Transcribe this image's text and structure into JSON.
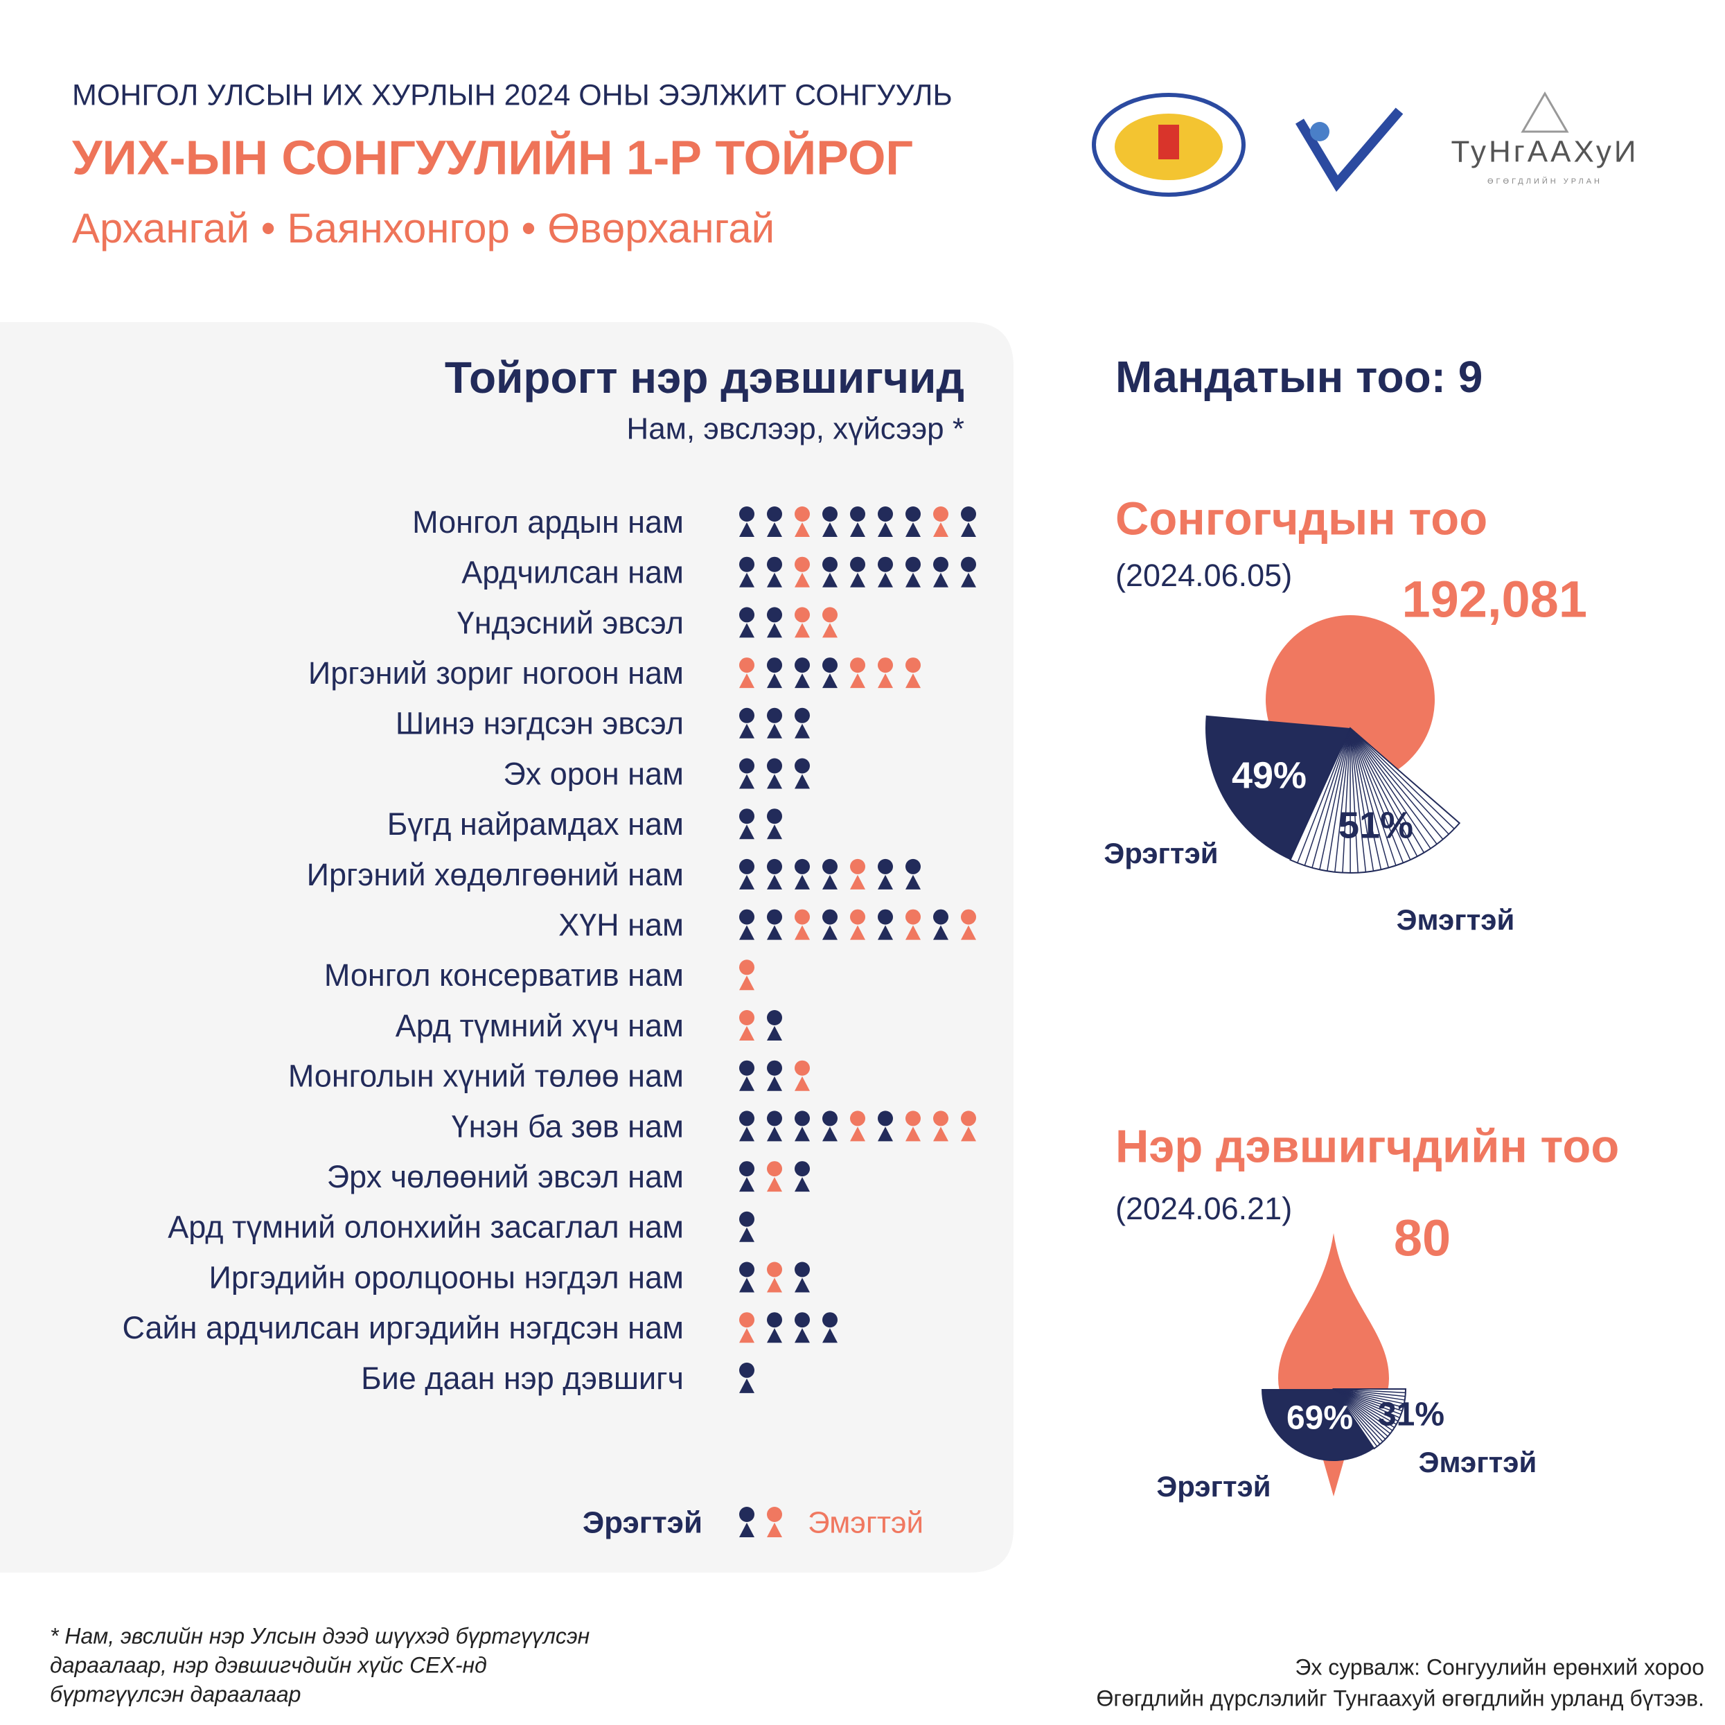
{
  "header": {
    "supertitle": "МОНГОЛ УЛСЫН ИХ ХУРЛЫН 2024 ОНЫ ЭЭЛЖИТ СОНГУУЛЬ",
    "title": "УИХ-ЫН СОНГУУЛИЙН 1-Р ТОЙРОГ",
    "regions": [
      "Архангай",
      "Баянхонгор",
      "Өвөрхангай"
    ],
    "brand": "ТуНгААХуИ",
    "brand_sub": "ӨГӨГДЛИЙН УРЛАН"
  },
  "candidates_panel": {
    "title": "Тойрогт нэр дэвшигчид",
    "subtitle": "Нам, эвслээр, хүйсээр *",
    "colors": {
      "m": "#222b5a",
      "f": "#f07860"
    },
    "legend": {
      "m": "Эрэгтэй",
      "f": "Эмэгтэй"
    },
    "parties": [
      {
        "name": "Монгол ардын нам",
        "candidates": [
          "m",
          "m",
          "f",
          "m",
          "m",
          "m",
          "m",
          "f",
          "m"
        ]
      },
      {
        "name": "Ардчилсан нам",
        "candidates": [
          "m",
          "m",
          "f",
          "m",
          "m",
          "m",
          "m",
          "m",
          "m"
        ]
      },
      {
        "name": "Үндэсний эвсэл",
        "candidates": [
          "m",
          "m",
          "f",
          "f"
        ]
      },
      {
        "name": "Иргэний зориг ногоон нам",
        "candidates": [
          "f",
          "m",
          "m",
          "m",
          "f",
          "f",
          "f"
        ]
      },
      {
        "name": "Шинэ нэгдсэн эвсэл",
        "candidates": [
          "m",
          "m",
          "m"
        ]
      },
      {
        "name": "Эх орон нам",
        "candidates": [
          "m",
          "m",
          "m"
        ]
      },
      {
        "name": "Бүгд найрамдах нам",
        "candidates": [
          "m",
          "m"
        ]
      },
      {
        "name": "Иргэний хөдөлгөөний нам",
        "candidates": [
          "m",
          "m",
          "m",
          "m",
          "f",
          "m",
          "m"
        ]
      },
      {
        "name": "ХҮН нам",
        "candidates": [
          "m",
          "m",
          "f",
          "m",
          "f",
          "m",
          "f",
          "m",
          "f"
        ]
      },
      {
        "name": "Монгол консерватив нам",
        "candidates": [
          "f"
        ]
      },
      {
        "name": "Ард түмний хүч нам",
        "candidates": [
          "f",
          "m"
        ]
      },
      {
        "name": "Монголын хүний төлөө нам",
        "candidates": [
          "m",
          "m",
          "f"
        ]
      },
      {
        "name": "Үнэн ба зөв нам",
        "candidates": [
          "m",
          "m",
          "m",
          "m",
          "f",
          "m",
          "f",
          "f",
          "f"
        ]
      },
      {
        "name": "Эрх чөлөөний эвсэл нам",
        "candidates": [
          "m",
          "f",
          "m"
        ]
      },
      {
        "name": "Ард түмний олонхийн засаглал нам",
        "candidates": [
          "m"
        ]
      },
      {
        "name": "Иргэдийн оролцооны нэгдэл нам",
        "candidates": [
          "m",
          "f",
          "m"
        ]
      },
      {
        "name": "Сайн ардчилсан иргэдийн нэгдсэн нам",
        "candidates": [
          "f",
          "m",
          "m",
          "m"
        ]
      },
      {
        "name": "Бие даан нэр дэвшигч",
        "candidates": [
          "m"
        ]
      }
    ]
  },
  "mandates": {
    "label": "Мандатын тоо:",
    "value": 9
  },
  "chart_data": [
    {
      "type": "pie",
      "title": "Сонгогчдын тоо",
      "subtitle": "(2024.06.05)",
      "total": 192081,
      "total_label": "192,081",
      "total_color": "#f07860",
      "categories": [
        "Эрэгтэй",
        "Эмэгтэй"
      ],
      "values": [
        49,
        51
      ],
      "value_labels": [
        "49%",
        "51%"
      ],
      "colors": [
        "#222b5a",
        "hatched"
      ]
    },
    {
      "type": "pie",
      "title": "Нэр дэвшигчдийн тоо",
      "subtitle": "(2024.06.21)",
      "total": 80,
      "total_color": "#f07860",
      "categories": [
        "Эрэгтэй",
        "Эмэгтэй"
      ],
      "values": [
        69,
        31
      ],
      "value_labels": [
        "69%",
        "31%"
      ],
      "colors": [
        "#222b5a",
        "hatched"
      ]
    }
  ],
  "footnote": [
    "* Нам, эвслийн нэр Улсын дээд шүүхэд бүртгүүлсэн",
    "дараалаар, нэр дэвшигчдийн хүйс СЕХ-нд",
    "бүртгүүлсэн дараалаар"
  ],
  "source": [
    "Эх сурвалж: Сонгуулийн ерөнхий хороо",
    "Өгөгдлийн дүрслэлийг Тунгаахуй өгөгдлийн урланд бүтээв."
  ]
}
